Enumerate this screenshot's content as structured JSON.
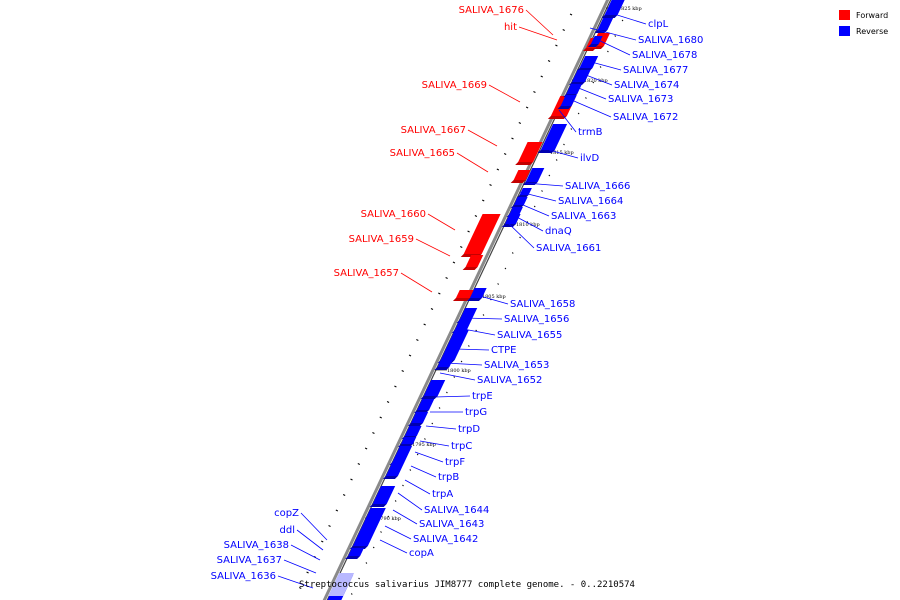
{
  "colors": {
    "forward": "#ff0000",
    "reverse": "#0000ff",
    "forward_shade": "#c40000",
    "reverse_shade": "#0000b0",
    "backbone": "#8a8a8a",
    "highlight": "#b8b8ff"
  },
  "legend": {
    "forward_label": "Forward",
    "reverse_label": "Reverse"
  },
  "caption": "Streptococcus salivarius JIM8777 complete genome. - 0..2210574",
  "ticks": [
    {
      "pos": 1825,
      "label": "1825 kbp"
    },
    {
      "pos": 1820,
      "label": "1820 kbp"
    },
    {
      "pos": 1815,
      "label": "1815 kbp"
    },
    {
      "pos": 1810,
      "label": "1810 kbp"
    },
    {
      "pos": 1805,
      "label": "1805 kbp"
    },
    {
      "pos": 1800,
      "label": "1800 kbp"
    },
    {
      "pos": 1795,
      "label": "1795 kbp"
    },
    {
      "pos": 1790,
      "label": "1790 kbp"
    }
  ],
  "forward_genes": [
    {
      "name": "SALIVA_1676"
    },
    {
      "name": "hit"
    },
    {
      "name": "SALIVA_1669"
    },
    {
      "name": "SALIVA_1667"
    },
    {
      "name": "SALIVA_1665"
    },
    {
      "name": "SALIVA_1660"
    },
    {
      "name": "SALIVA_1659"
    },
    {
      "name": "SALIVA_1657"
    }
  ],
  "reverse_genes": [
    {
      "name": "clpL"
    },
    {
      "name": "SALIVA_1680"
    },
    {
      "name": "SALIVA_1678"
    },
    {
      "name": "SALIVA_1677"
    },
    {
      "name": "SALIVA_1674"
    },
    {
      "name": "SALIVA_1673"
    },
    {
      "name": "SALIVA_1672"
    },
    {
      "name": "trmB"
    },
    {
      "name": "ilvD"
    },
    {
      "name": "SALIVA_1666"
    },
    {
      "name": "SALIVA_1664"
    },
    {
      "name": "SALIVA_1663"
    },
    {
      "name": "dnaQ"
    },
    {
      "name": "SALIVA_1661"
    },
    {
      "name": "SALIVA_1658"
    },
    {
      "name": "SALIVA_1656"
    },
    {
      "name": "SALIVA_1655"
    },
    {
      "name": "CTPE"
    },
    {
      "name": "SALIVA_1653"
    },
    {
      "name": "SALIVA_1652"
    },
    {
      "name": "trpE"
    },
    {
      "name": "trpG"
    },
    {
      "name": "trpD"
    },
    {
      "name": "trpC"
    },
    {
      "name": "trpF"
    },
    {
      "name": "trpB"
    },
    {
      "name": "trpA"
    },
    {
      "name": "SALIVA_1644"
    },
    {
      "name": "SALIVA_1643"
    },
    {
      "name": "SALIVA_1642"
    },
    {
      "name": "copA"
    }
  ],
  "left_reverse_genes": [
    {
      "name": "copZ"
    },
    {
      "name": "ddl"
    },
    {
      "name": "SALIVA_1638"
    },
    {
      "name": "SALIVA_1637"
    },
    {
      "name": "SALIVA_1636"
    }
  ]
}
